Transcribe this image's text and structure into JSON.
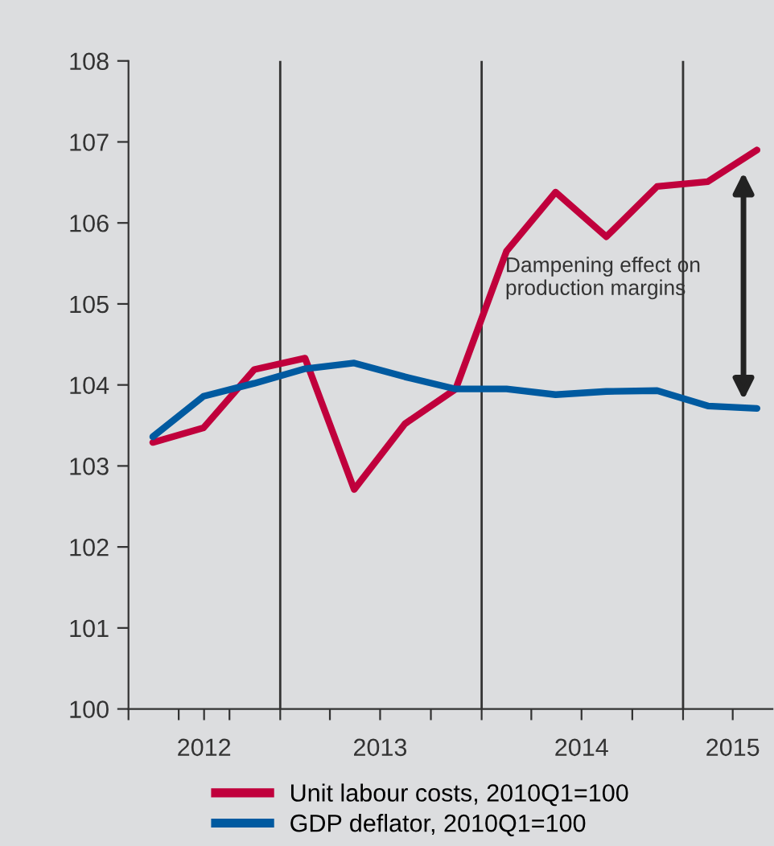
{
  "chart_data": {
    "type": "line",
    "x": [
      "2012-05-15",
      "2012-08-15",
      "2012-11-15",
      "2013-02-15",
      "2013-05-15",
      "2013-08-15",
      "2013-11-15",
      "2014-02-15",
      "2014-05-15",
      "2014-08-15",
      "2014-11-15",
      "2015-02-15",
      "2015-05-15"
    ],
    "series": [
      {
        "name": "Unit labour costs, 2010Q1=100",
        "color": "#c0003c",
        "values": [
          103.29,
          103.47,
          104.19,
          104.33,
          102.71,
          103.52,
          103.95,
          105.65,
          106.38,
          105.83,
          106.45,
          106.51,
          106.9
        ]
      },
      {
        "name": "GDP deflator, 2010Q1=100",
        "color": "#005aa0",
        "values": [
          103.36,
          103.86,
          104.02,
          104.2,
          104.27,
          104.1,
          103.95,
          103.95,
          103.88,
          103.92,
          103.93,
          103.74,
          103.71
        ]
      }
    ],
    "xlim": [
      "2012-04-01",
      "2015-06-12"
    ],
    "xticks": [
      {
        "value": "2012-04-01",
        "label": null
      },
      {
        "value": "2012-07-01",
        "label": null
      },
      {
        "value": "2012-08-16",
        "label": "2012"
      },
      {
        "value": "2012-10-01",
        "label": null
      },
      {
        "value": "2013-01-01",
        "label": null
      },
      {
        "value": "2013-04-01",
        "label": null
      },
      {
        "value": "2013-07-01",
        "label": "2013"
      },
      {
        "value": "2013-10-01",
        "label": null
      },
      {
        "value": "2014-01-01",
        "label": null
      },
      {
        "value": "2014-04-01",
        "label": null
      },
      {
        "value": "2014-07-01",
        "label": "2014"
      },
      {
        "value": "2014-10-01",
        "label": null
      },
      {
        "value": "2015-01-01",
        "label": null
      },
      {
        "value": "2015-04-01",
        "label": "2015"
      }
    ],
    "ylim": [
      100,
      108
    ],
    "yticks": [
      100,
      101,
      102,
      103,
      104,
      105,
      106,
      107,
      108
    ],
    "ref_lines": [
      {
        "axis": "x",
        "value": "2013-01-01",
        "label": null,
        "color": "#333333"
      },
      {
        "axis": "x",
        "value": "2014-01-01",
        "label": null,
        "color": "#333333"
      },
      {
        "axis": "x",
        "value": "2015-01-01",
        "label": null,
        "color": "#333333"
      }
    ],
    "annotations": [
      "Dampening effect on\nproduction margins"
    ],
    "grid": false,
    "legend": "bottom",
    "marker": "none",
    "line_style": "solid"
  }
}
